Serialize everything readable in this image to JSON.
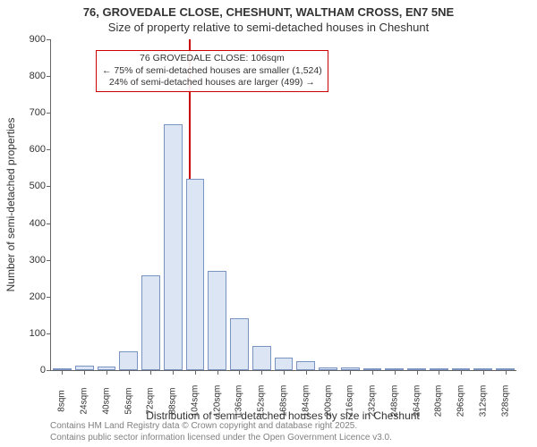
{
  "title_line1": "76, GROVEDALE CLOSE, CHESHUNT, WALTHAM CROSS, EN7 5NE",
  "title_line2": "Size of property relative to semi-detached houses in Cheshunt",
  "ylabel": "Number of semi-detached properties",
  "xlabel": "Distribution of semi-detached houses by size in Cheshunt",
  "chart": {
    "type": "histogram",
    "ylim": [
      0,
      900
    ],
    "ytick_step": 100,
    "yticks": [
      0,
      100,
      200,
      300,
      400,
      500,
      600,
      700,
      800,
      900
    ],
    "bar_fill": "#dbe5f4",
    "bar_border": "#7a93c0",
    "axis_color": "#666666",
    "bg_color": "#ffffff",
    "ref_line_color": "#cc0000",
    "ref_line_x_index": 6.2,
    "callout_border": "#cc0000",
    "callout": {
      "line1": "76 GROVEDALE CLOSE: 106sqm",
      "line2": "← 75% of semi-detached houses are smaller (1,524)",
      "line3": "24% of semi-detached houses are larger (499) →"
    },
    "bins": [
      {
        "label": "8sqm",
        "value": 4
      },
      {
        "label": "24sqm",
        "value": 12
      },
      {
        "label": "40sqm",
        "value": 10
      },
      {
        "label": "56sqm",
        "value": 52
      },
      {
        "label": "72sqm",
        "value": 258
      },
      {
        "label": "88sqm",
        "value": 670
      },
      {
        "label": "104sqm",
        "value": 520
      },
      {
        "label": "120sqm",
        "value": 270
      },
      {
        "label": "136sqm",
        "value": 140
      },
      {
        "label": "152sqm",
        "value": 65
      },
      {
        "label": "168sqm",
        "value": 35
      },
      {
        "label": "184sqm",
        "value": 25
      },
      {
        "label": "200sqm",
        "value": 8
      },
      {
        "label": "216sqm",
        "value": 7
      },
      {
        "label": "232sqm",
        "value": 4
      },
      {
        "label": "248sqm",
        "value": 3
      },
      {
        "label": "264sqm",
        "value": 2
      },
      {
        "label": "280sqm",
        "value": 2
      },
      {
        "label": "296sqm",
        "value": 2
      },
      {
        "label": "312sqm",
        "value": 5
      },
      {
        "label": "328sqm",
        "value": 2
      }
    ]
  },
  "footer": {
    "line1": "Contains HM Land Registry data © Crown copyright and database right 2025.",
    "line2": "Contains public sector information licensed under the Open Government Licence v3.0."
  }
}
